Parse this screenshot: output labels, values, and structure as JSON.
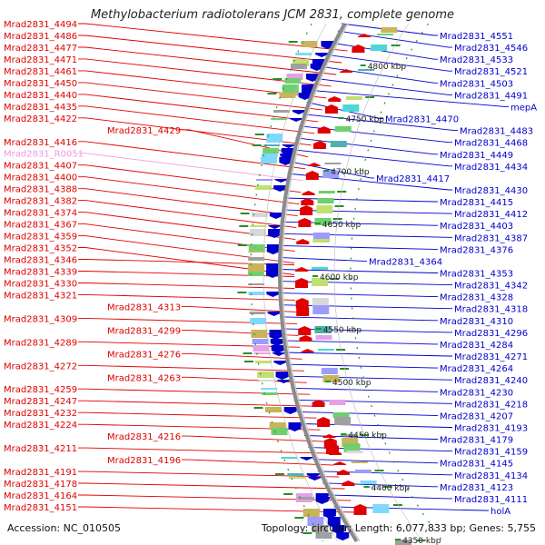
{
  "title": "Methylobacterium radiotolerans JCM 2831, complete genome",
  "footer": {
    "accession": "Accession: NC_010505",
    "topology": "Topology: circular; Length: 6,077,833 bp; Genes: 5,755"
  },
  "colors": {
    "forward_strand": "#e00000",
    "reverse_strand": "#0000cc",
    "rna": "#f09bdc",
    "backbone": "#8a8a8a",
    "kbp_tick": "#1a9a1a"
  },
  "kbp_ticks": [
    "4800 kbp",
    "4750 kbp",
    "4700 kbp",
    "4650 kbp",
    "4600 kbp",
    "4550 kbp",
    "4500 kbp",
    "4450 kbp",
    "4400 kbp",
    "4350 kbp"
  ],
  "left_labels": [
    {
      "text": "Mrad2831_4494",
      "type": "gene"
    },
    {
      "text": "Mrad2831_4486",
      "type": "gene"
    },
    {
      "text": "Mrad2831_4477",
      "type": "gene"
    },
    {
      "text": "Mrad2831_4471",
      "type": "gene"
    },
    {
      "text": "Mrad2831_4461",
      "type": "gene"
    },
    {
      "text": "Mrad2831_4450",
      "type": "gene"
    },
    {
      "text": "Mrad2831_4440",
      "type": "gene"
    },
    {
      "text": "Mrad2831_4435",
      "type": "gene"
    },
    {
      "text": "Mrad2831_4422",
      "type": "gene"
    },
    {
      "text": "Mrad2831_4429",
      "type": "gene"
    },
    {
      "text": "Mrad2831_4416",
      "type": "gene"
    },
    {
      "text": "Mrad2831_R0051",
      "type": "rna"
    },
    {
      "text": "Mrad2831_4407",
      "type": "gene"
    },
    {
      "text": "Mrad2831_4400",
      "type": "gene"
    },
    {
      "text": "Mrad2831_4388",
      "type": "gene"
    },
    {
      "text": "Mrad2831_4382",
      "type": "gene"
    },
    {
      "text": "Mrad2831_4374",
      "type": "gene"
    },
    {
      "text": "Mrad2831_4367",
      "type": "gene"
    },
    {
      "text": "Mrad2831_4359",
      "type": "gene"
    },
    {
      "text": "Mrad2831_4352",
      "type": "gene"
    },
    {
      "text": "Mrad2831_4346",
      "type": "gene"
    },
    {
      "text": "Mrad2831_4339",
      "type": "gene"
    },
    {
      "text": "Mrad2831_4330",
      "type": "gene"
    },
    {
      "text": "Mrad2831_4321",
      "type": "gene"
    },
    {
      "text": "Mrad2831_4313",
      "type": "gene"
    },
    {
      "text": "Mrad2831_4309",
      "type": "gene"
    },
    {
      "text": "Mrad2831_4299",
      "type": "gene"
    },
    {
      "text": "Mrad2831_4289",
      "type": "gene"
    },
    {
      "text": "Mrad2831_4276",
      "type": "gene"
    },
    {
      "text": "Mrad2831_4272",
      "type": "gene"
    },
    {
      "text": "Mrad2831_4263",
      "type": "gene"
    },
    {
      "text": "Mrad2831_4259",
      "type": "gene"
    },
    {
      "text": "Mrad2831_4247",
      "type": "gene"
    },
    {
      "text": "Mrad2831_4232",
      "type": "gene"
    },
    {
      "text": "Mrad2831_4224",
      "type": "gene"
    },
    {
      "text": "Mrad2831_4216",
      "type": "gene"
    },
    {
      "text": "Mrad2831_4211",
      "type": "gene"
    },
    {
      "text": "Mrad2831_4196",
      "type": "gene"
    },
    {
      "text": "Mrad2831_4191",
      "type": "gene"
    },
    {
      "text": "Mrad2831_4178",
      "type": "gene"
    },
    {
      "text": "Mrad2831_4164",
      "type": "gene"
    },
    {
      "text": "Mrad2831_4151",
      "type": "gene"
    }
  ],
  "right_labels": [
    {
      "text": "Mrad2831_4551",
      "type": "gene"
    },
    {
      "text": "Mrad2831_4546",
      "type": "gene"
    },
    {
      "text": "Mrad2831_4533",
      "type": "gene"
    },
    {
      "text": "Mrad2831_4521",
      "type": "gene"
    },
    {
      "text": "Mrad2831_4503",
      "type": "gene"
    },
    {
      "text": "Mrad2831_4491",
      "type": "gene"
    },
    {
      "text": "mepA",
      "type": "gene"
    },
    {
      "text": "Mrad2831_4470",
      "type": "gene"
    },
    {
      "text": "Mrad2831_4483",
      "type": "gene"
    },
    {
      "text": "Mrad2831_4468",
      "type": "gene"
    },
    {
      "text": "Mrad2831_4449",
      "type": "gene"
    },
    {
      "text": "Mrad2831_4434",
      "type": "gene"
    },
    {
      "text": "Mrad2831_4417",
      "type": "gene"
    },
    {
      "text": "Mrad2831_4430",
      "type": "gene"
    },
    {
      "text": "Mrad2831_4415",
      "type": "gene"
    },
    {
      "text": "Mrad2831_4412",
      "type": "gene"
    },
    {
      "text": "Mrad2831_4403",
      "type": "gene"
    },
    {
      "text": "Mrad2831_4387",
      "type": "gene"
    },
    {
      "text": "Mrad2831_4376",
      "type": "gene"
    },
    {
      "text": "Mrad2831_4364",
      "type": "gene"
    },
    {
      "text": "Mrad2831_4353",
      "type": "gene"
    },
    {
      "text": "Mrad2831_4342",
      "type": "gene"
    },
    {
      "text": "Mrad2831_4328",
      "type": "gene"
    },
    {
      "text": "Mrad2831_4318",
      "type": "gene"
    },
    {
      "text": "Mrad2831_4310",
      "type": "gene"
    },
    {
      "text": "Mrad2831_4296",
      "type": "gene"
    },
    {
      "text": "Mrad2831_4284",
      "type": "gene"
    },
    {
      "text": "Mrad2831_4271",
      "type": "gene"
    },
    {
      "text": "Mrad2831_4264",
      "type": "gene"
    },
    {
      "text": "Mrad2831_4240",
      "type": "gene"
    },
    {
      "text": "Mrad2831_4230",
      "type": "gene"
    },
    {
      "text": "Mrad2831_4218",
      "type": "gene"
    },
    {
      "text": "Mrad2831_4207",
      "type": "gene"
    },
    {
      "text": "Mrad2831_4193",
      "type": "gene"
    },
    {
      "text": "Mrad2831_4179",
      "type": "gene"
    },
    {
      "text": "Mrad2831_4159",
      "type": "gene"
    },
    {
      "text": "Mrad2831_4145",
      "type": "gene"
    },
    {
      "text": "Mrad2831_4134",
      "type": "gene"
    },
    {
      "text": "Mrad2831_4123",
      "type": "gene"
    },
    {
      "text": "Mrad2831_4111",
      "type": "gene"
    },
    {
      "text": "holA",
      "type": "gene"
    }
  ]
}
